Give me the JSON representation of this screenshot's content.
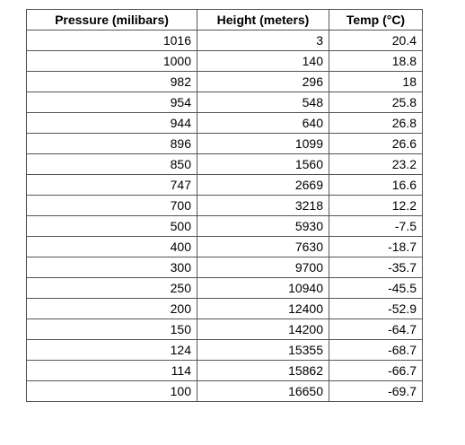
{
  "table": {
    "header": [
      "Pressure (milibars)",
      "Height (meters)",
      "Temp (°C)"
    ],
    "rows": [
      [
        1016,
        3,
        20.4
      ],
      [
        1000,
        140,
        18.8
      ],
      [
        982,
        296,
        18
      ],
      [
        954,
        548,
        25.8
      ],
      [
        944,
        640,
        26.8
      ],
      [
        896,
        1099,
        26.6
      ],
      [
        850,
        1560,
        23.2
      ],
      [
        747,
        2669,
        16.6
      ],
      [
        700,
        3218,
        12.2
      ],
      [
        500,
        5930,
        -7.5
      ],
      [
        400,
        7630,
        -18.7
      ],
      [
        300,
        9700,
        -35.7
      ],
      [
        250,
        10940,
        -45.5
      ],
      [
        200,
        12400,
        -52.9
      ],
      [
        150,
        14200,
        -64.7
      ],
      [
        124,
        15355,
        -68.7
      ],
      [
        114,
        15862,
        -66.7
      ],
      [
        100,
        16650,
        -69.7
      ]
    ]
  }
}
